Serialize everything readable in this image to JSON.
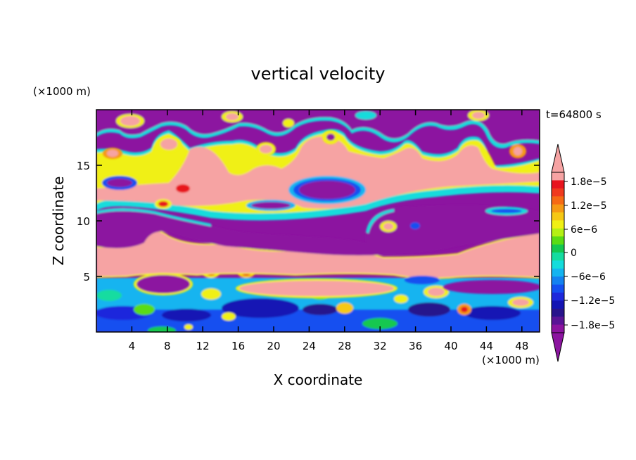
{
  "chart_data": {
    "type": "heatmap",
    "title": "vertical velocity",
    "time_label": "t=64800 s",
    "xlabel": "X coordinate",
    "ylabel": "Z coordinate",
    "x_unit": "(×1000 m)",
    "y_unit": "(×1000 m)",
    "xlim": [
      0,
      50
    ],
    "ylim": [
      0,
      20
    ],
    "x_ticks": [
      4,
      8,
      12,
      16,
      20,
      24,
      28,
      32,
      36,
      40,
      44,
      48
    ],
    "x_tick_labels": [
      "4",
      "8",
      "12",
      "16",
      "20",
      "24",
      "28",
      "32",
      "36",
      "40",
      "44",
      "48"
    ],
    "y_ticks": [
      5,
      10,
      15
    ],
    "y_tick_labels": [
      "5",
      "10",
      "15"
    ],
    "colorbar": {
      "labels": [
        "1.8e−5",
        "1.2e−5",
        "6e−6",
        "0",
        "−6e−6",
        "−1.2e−5",
        "−1.8e−5"
      ],
      "levels": [
        1.8e-05,
        1.2e-05,
        6e-06,
        0,
        -6e-06,
        -1.2e-05,
        -1.8e-05
      ],
      "colors_top_to_bottom": [
        "#f6a3a3",
        "#e8141e",
        "#f03a1e",
        "#f66a14",
        "#f69a14",
        "#f6c814",
        "#f0f014",
        "#b4f014",
        "#5adc14",
        "#14c850",
        "#14dca0",
        "#14dcdc",
        "#14b4f0",
        "#1482f0",
        "#1450f0",
        "#1e28dc",
        "#1414b4",
        "#28148c",
        "#5a1496",
        "#8c14a0"
      ],
      "over_color": "#f6a3a3",
      "under_color": "#8c14a0"
    }
  }
}
